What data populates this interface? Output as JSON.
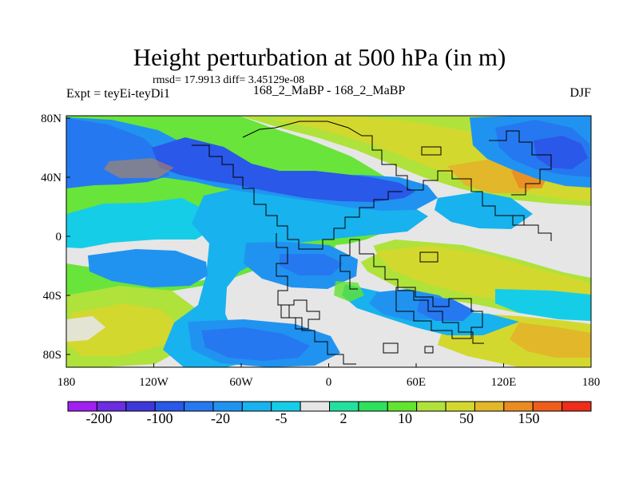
{
  "header": {
    "title": "Height perturbation at 500 hPa (in m)",
    "rmsd": "rmsd= 17.9913 diff= 3.45129e-08",
    "left_label": "Expt = teyEi-teyDi1",
    "center_label": "168_2_MaBP - 168_2_MaBP",
    "right_label": "DJF"
  },
  "map": {
    "x_ticks": [
      "180",
      "120W",
      "60W",
      "0",
      "60E",
      "120E",
      "180"
    ],
    "y_ticks": [
      "80N",
      "40N",
      "0",
      "40S",
      "80S"
    ],
    "colors": {
      "coastline": "#000000",
      "frame": "#000000",
      "neutral": "#e6e6e6"
    }
  },
  "colorbar": {
    "labels": [
      "-200",
      "-100",
      "-20",
      "-5",
      "2",
      "10",
      "50",
      "150"
    ],
    "colors": [
      "#a020f0",
      "#6a2de0",
      "#3f38d8",
      "#2a58e8",
      "#2678f0",
      "#2093f0",
      "#18b2ee",
      "#16cde8",
      "#e6e6e6",
      "#24e09f",
      "#2ee05d",
      "#62e430",
      "#afe23b",
      "#d3d82e",
      "#e2b72a",
      "#ea8b23",
      "#ef5d1d",
      "#ee2d1a"
    ]
  }
}
